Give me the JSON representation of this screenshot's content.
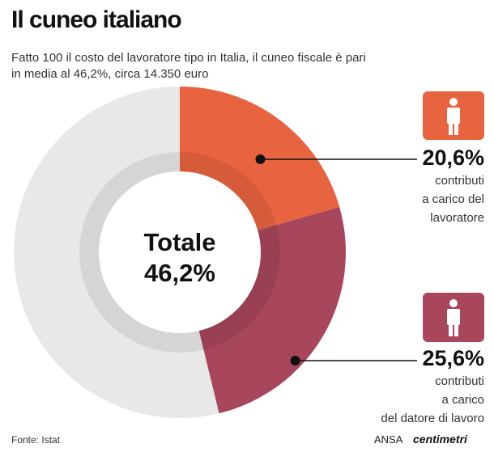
{
  "chart_data": {
    "type": "donut",
    "title": "Il cuneo italiano",
    "subtitle": "Fatto 100 il costo del lavoratore tipo in Italia, il cuneo fiscale è pari\nin media al 46,2%, circa 14.350 euro",
    "center_title": "Totale",
    "center_value_label": "46,2%",
    "categories": [
      "contributi\na carico del\nlavoratore",
      "contributi\na carico\ndel datore di lavoro",
      null
    ],
    "values": [
      20.6,
      25.6,
      53.8
    ],
    "value_labels": [
      "20,6%",
      "25,6%",
      null
    ],
    "colors": [
      "#e8633f",
      "#a8465c",
      "#e8e8e8"
    ],
    "source": "Fonte: Istat",
    "credit": "ANSA",
    "credit_brand": "centimetri"
  }
}
